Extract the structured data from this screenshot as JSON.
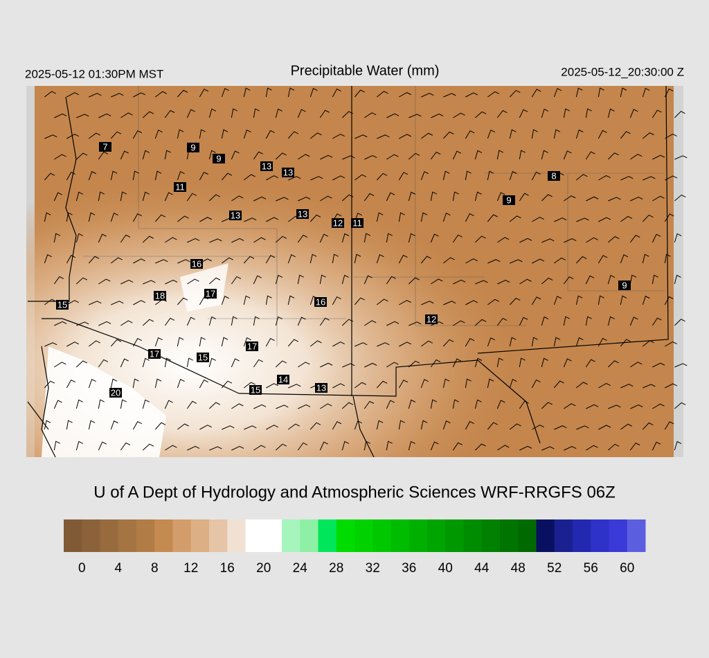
{
  "header": {
    "local_time": "2025-05-12 01:30PM MST",
    "title": "Precipitable Water (mm)",
    "utc_time": "2025-05-12_20:30:00 Z"
  },
  "map": {
    "point_labels": [
      "7",
      "9",
      "9",
      "13",
      "13",
      "11",
      "8",
      "9",
      "13",
      "13",
      "12",
      "11",
      "16",
      "9",
      "18",
      "17",
      "15",
      "16",
      "12",
      "17",
      "17",
      "15",
      "14",
      "15",
      "13",
      "20"
    ]
  },
  "footer": {
    "credit": "U of A Dept of Hydrology and Atmospheric Sciences WRF-RRGFS 06Z"
  },
  "colorbar": {
    "range": [
      -2,
      62
    ],
    "ticks": [
      0,
      4,
      8,
      12,
      16,
      20,
      24,
      28,
      32,
      36,
      40,
      44,
      48,
      52,
      56,
      60
    ],
    "colors": [
      "#7f5a35",
      "#8b6239",
      "#986b3e",
      "#a57443",
      "#b27c47",
      "#c48a4f",
      "#d39d6b",
      "#dcaf85",
      "#e6c4a7",
      "#f0e1d2",
      "#ffffff",
      "#ffffff",
      "#a6f5bd",
      "#8ef0a5",
      "#00e65a",
      "#00dc00",
      "#00d200",
      "#00c800",
      "#00bc00",
      "#00b000",
      "#00a400",
      "#009800",
      "#008c00",
      "#008000",
      "#007400",
      "#006a00",
      "#0a1060",
      "#1a2090",
      "#2228b0",
      "#2e32c8",
      "#3a3ad8",
      "#5c5ee0"
    ]
  }
}
